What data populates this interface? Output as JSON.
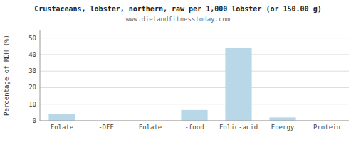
{
  "chart_data": {
    "type": "bar",
    "title": "Crustaceans, lobster, northern, raw per 1,000 lobster (or 150.00 g)",
    "subtitle": "www.dietandfitnesstoday.com",
    "categories": [
      "Folate",
      "-DFE",
      "Folate",
      "-food",
      "Folic-acid",
      "Energy",
      "Protein"
    ],
    "values": [
      4.0,
      0.0,
      0.0,
      6.5,
      44.0,
      2.0,
      0.0
    ],
    "color": "#b8d8e8",
    "ylabel": "Percentage of RDH (%)",
    "ylim": [
      0,
      55
    ],
    "yticks": [
      0,
      10,
      20,
      30,
      40,
      50
    ],
    "grid": true
  }
}
